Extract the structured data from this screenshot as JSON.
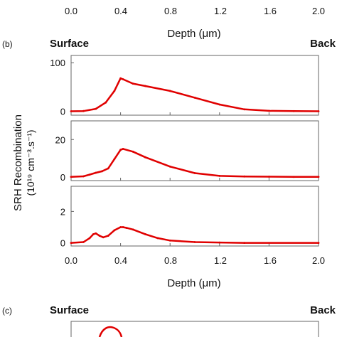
{
  "top_strip": {
    "tick_labels": [
      "0.0",
      "0.4",
      "0.8",
      "1.2",
      "1.6",
      "2.0"
    ],
    "xlabel": "Depth (μm)"
  },
  "panel_b": {
    "label": "(b)",
    "surface_label": "Surface",
    "back_label": "Back",
    "ylabel_line1": "SRH Recombination",
    "ylabel_line2": "(10¹⁹ cm⁻³.s⁻¹)",
    "colors": {
      "curve": "#e00000",
      "axis": "#666666"
    }
  },
  "panel_c": {
    "label": "(c)",
    "surface_label": "Surface",
    "back_label": "Back"
  },
  "chart_data": [
    {
      "type": "line",
      "xlabel": "Depth (μm)",
      "xlim": [
        0,
        2.0
      ],
      "xticks": [
        "0.0",
        "0.4",
        "0.8",
        "1.2",
        "1.6",
        "2.0"
      ],
      "ylim": [
        -8,
        115
      ],
      "yticks": [
        "0",
        "100"
      ],
      "grid": false,
      "series": [
        {
          "x": [
            0,
            0.1,
            0.2,
            0.28,
            0.35,
            0.4,
            0.42,
            0.5,
            0.6,
            0.8,
            1.0,
            1.2,
            1.4,
            1.6,
            1.8,
            2.0
          ],
          "y": [
            0,
            0.5,
            5,
            18,
            42,
            68,
            66,
            57,
            52,
            42,
            28,
            14,
            4,
            1,
            0.3,
            0
          ]
        }
      ]
    },
    {
      "type": "line",
      "xlabel": "Depth (μm)",
      "xlim": [
        0,
        2.0
      ],
      "xticks": [
        "0.0",
        "0.4",
        "0.8",
        "1.2",
        "1.6",
        "2.0"
      ],
      "ylim": [
        -2,
        30
      ],
      "yticks": [
        "0",
        "20"
      ],
      "grid": false,
      "series": [
        {
          "x": [
            0,
            0.1,
            0.15,
            0.2,
            0.25,
            0.3,
            0.35,
            0.4,
            0.42,
            0.5,
            0.6,
            0.8,
            1.0,
            1.2,
            1.4,
            1.6,
            1.8,
            2.0
          ],
          "y": [
            0,
            0.3,
            1.2,
            2.2,
            3.0,
            4.5,
            9.5,
            14.5,
            15.0,
            13.5,
            10.5,
            5.5,
            2.0,
            0.5,
            0.2,
            0.1,
            0,
            0
          ]
        }
      ]
    },
    {
      "type": "line",
      "xlabel": "Depth (μm)",
      "xlim": [
        0,
        2.0
      ],
      "xticks": [
        "0.0",
        "0.4",
        "0.8",
        "1.2",
        "1.6",
        "2.0"
      ],
      "ylim": [
        -0.2,
        3.6
      ],
      "yticks": [
        "0",
        "2"
      ],
      "grid": false,
      "series": [
        {
          "x": [
            0,
            0.1,
            0.15,
            0.18,
            0.2,
            0.23,
            0.26,
            0.3,
            0.35,
            0.4,
            0.42,
            0.45,
            0.5,
            0.6,
            0.7,
            0.8,
            1.0,
            1.2,
            1.4,
            2.0
          ],
          "y": [
            0,
            0.05,
            0.3,
            0.55,
            0.6,
            0.45,
            0.35,
            0.45,
            0.8,
            1.0,
            1.0,
            0.95,
            0.85,
            0.55,
            0.3,
            0.15,
            0.05,
            0.02,
            0,
            0
          ]
        }
      ]
    }
  ]
}
